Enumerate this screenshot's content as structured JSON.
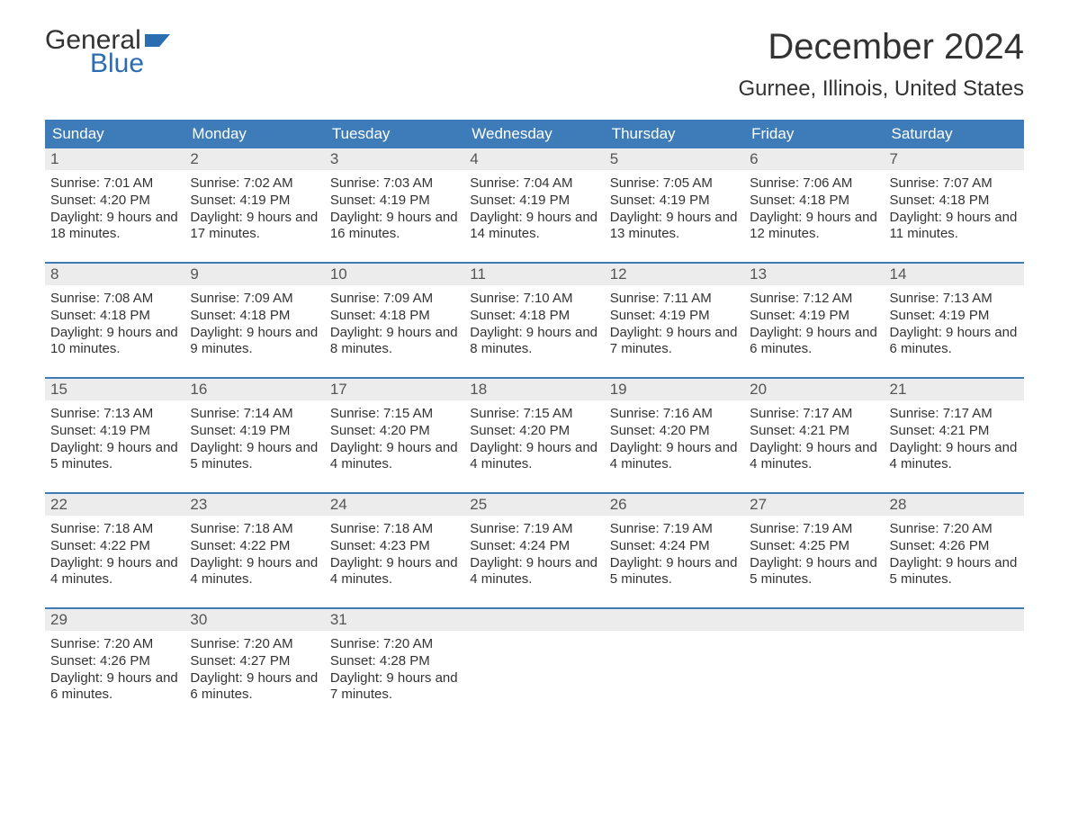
{
  "brand": {
    "word1": "General",
    "word2": "Blue",
    "flag_color": "#2a6db0"
  },
  "title": "December 2024",
  "location": "Gurnee, Illinois, United States",
  "colors": {
    "header_bg": "#3d7cb8",
    "header_text": "#ffffff",
    "daynum_bg": "#ececec",
    "week_border": "#3d7cb8",
    "body_text": "#333333",
    "page_bg": "#ffffff"
  },
  "typography": {
    "title_fontsize": 40,
    "location_fontsize": 24,
    "dow_fontsize": 17,
    "daynum_fontsize": 17,
    "body_fontsize": 15
  },
  "dow": [
    "Sunday",
    "Monday",
    "Tuesday",
    "Wednesday",
    "Thursday",
    "Friday",
    "Saturday"
  ],
  "weeks": [
    [
      {
        "n": "1",
        "sunrise": "7:01 AM",
        "sunset": "4:20 PM",
        "daylight": "9 hours and 18 minutes."
      },
      {
        "n": "2",
        "sunrise": "7:02 AM",
        "sunset": "4:19 PM",
        "daylight": "9 hours and 17 minutes."
      },
      {
        "n": "3",
        "sunrise": "7:03 AM",
        "sunset": "4:19 PM",
        "daylight": "9 hours and 16 minutes."
      },
      {
        "n": "4",
        "sunrise": "7:04 AM",
        "sunset": "4:19 PM",
        "daylight": "9 hours and 14 minutes."
      },
      {
        "n": "5",
        "sunrise": "7:05 AM",
        "sunset": "4:19 PM",
        "daylight": "9 hours and 13 minutes."
      },
      {
        "n": "6",
        "sunrise": "7:06 AM",
        "sunset": "4:18 PM",
        "daylight": "9 hours and 12 minutes."
      },
      {
        "n": "7",
        "sunrise": "7:07 AM",
        "sunset": "4:18 PM",
        "daylight": "9 hours and 11 minutes."
      }
    ],
    [
      {
        "n": "8",
        "sunrise": "7:08 AM",
        "sunset": "4:18 PM",
        "daylight": "9 hours and 10 minutes."
      },
      {
        "n": "9",
        "sunrise": "7:09 AM",
        "sunset": "4:18 PM",
        "daylight": "9 hours and 9 minutes."
      },
      {
        "n": "10",
        "sunrise": "7:09 AM",
        "sunset": "4:18 PM",
        "daylight": "9 hours and 8 minutes."
      },
      {
        "n": "11",
        "sunrise": "7:10 AM",
        "sunset": "4:18 PM",
        "daylight": "9 hours and 8 minutes."
      },
      {
        "n": "12",
        "sunrise": "7:11 AM",
        "sunset": "4:19 PM",
        "daylight": "9 hours and 7 minutes."
      },
      {
        "n": "13",
        "sunrise": "7:12 AM",
        "sunset": "4:19 PM",
        "daylight": "9 hours and 6 minutes."
      },
      {
        "n": "14",
        "sunrise": "7:13 AM",
        "sunset": "4:19 PM",
        "daylight": "9 hours and 6 minutes."
      }
    ],
    [
      {
        "n": "15",
        "sunrise": "7:13 AM",
        "sunset": "4:19 PM",
        "daylight": "9 hours and 5 minutes."
      },
      {
        "n": "16",
        "sunrise": "7:14 AM",
        "sunset": "4:19 PM",
        "daylight": "9 hours and 5 minutes."
      },
      {
        "n": "17",
        "sunrise": "7:15 AM",
        "sunset": "4:20 PM",
        "daylight": "9 hours and 4 minutes."
      },
      {
        "n": "18",
        "sunrise": "7:15 AM",
        "sunset": "4:20 PM",
        "daylight": "9 hours and 4 minutes."
      },
      {
        "n": "19",
        "sunrise": "7:16 AM",
        "sunset": "4:20 PM",
        "daylight": "9 hours and 4 minutes."
      },
      {
        "n": "20",
        "sunrise": "7:17 AM",
        "sunset": "4:21 PM",
        "daylight": "9 hours and 4 minutes."
      },
      {
        "n": "21",
        "sunrise": "7:17 AM",
        "sunset": "4:21 PM",
        "daylight": "9 hours and 4 minutes."
      }
    ],
    [
      {
        "n": "22",
        "sunrise": "7:18 AM",
        "sunset": "4:22 PM",
        "daylight": "9 hours and 4 minutes."
      },
      {
        "n": "23",
        "sunrise": "7:18 AM",
        "sunset": "4:22 PM",
        "daylight": "9 hours and 4 minutes."
      },
      {
        "n": "24",
        "sunrise": "7:18 AM",
        "sunset": "4:23 PM",
        "daylight": "9 hours and 4 minutes."
      },
      {
        "n": "25",
        "sunrise": "7:19 AM",
        "sunset": "4:24 PM",
        "daylight": "9 hours and 4 minutes."
      },
      {
        "n": "26",
        "sunrise": "7:19 AM",
        "sunset": "4:24 PM",
        "daylight": "9 hours and 5 minutes."
      },
      {
        "n": "27",
        "sunrise": "7:19 AM",
        "sunset": "4:25 PM",
        "daylight": "9 hours and 5 minutes."
      },
      {
        "n": "28",
        "sunrise": "7:20 AM",
        "sunset": "4:26 PM",
        "daylight": "9 hours and 5 minutes."
      }
    ],
    [
      {
        "n": "29",
        "sunrise": "7:20 AM",
        "sunset": "4:26 PM",
        "daylight": "9 hours and 6 minutes."
      },
      {
        "n": "30",
        "sunrise": "7:20 AM",
        "sunset": "4:27 PM",
        "daylight": "9 hours and 6 minutes."
      },
      {
        "n": "31",
        "sunrise": "7:20 AM",
        "sunset": "4:28 PM",
        "daylight": "9 hours and 7 minutes."
      },
      {
        "empty": true
      },
      {
        "empty": true
      },
      {
        "empty": true
      },
      {
        "empty": true
      }
    ]
  ],
  "labels": {
    "sunrise": "Sunrise: ",
    "sunset": "Sunset: ",
    "daylight": "Daylight: "
  }
}
